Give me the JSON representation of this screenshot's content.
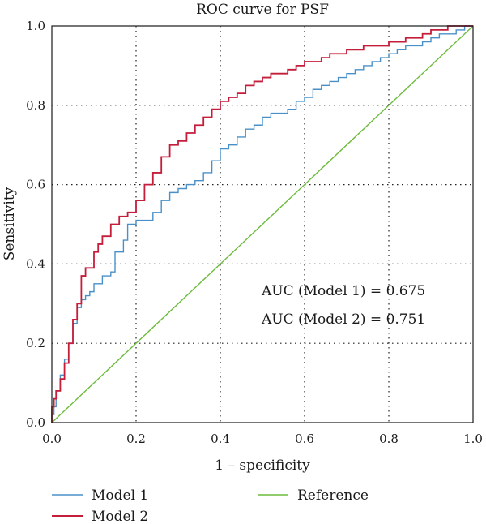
{
  "chart_data": {
    "type": "line",
    "title": "ROC curve for PSF",
    "xlabel": "1 – specificity",
    "ylabel": "Sensitivity",
    "xlim": [
      0,
      1
    ],
    "ylim": [
      0,
      1
    ],
    "xticks": [
      "0.0",
      "0.2",
      "0.4",
      "0.6",
      "0.8",
      "1.0"
    ],
    "yticks": [
      "0.0",
      "0.2",
      "0.4",
      "0.6",
      "0.8",
      "1.0"
    ],
    "grid": true,
    "legend_position": "bottom",
    "annotations": [
      "AUC (Model 1) = 0.675",
      "AUC (Model 2) = 0.751"
    ],
    "series": [
      {
        "name": "Model 1",
        "color": "#4a90c8",
        "x": [
          0,
          0.005,
          0.01,
          0.02,
          0.03,
          0.04,
          0.05,
          0.06,
          0.07,
          0.08,
          0.09,
          0.1,
          0.12,
          0.14,
          0.15,
          0.17,
          0.18,
          0.2,
          0.22,
          0.24,
          0.26,
          0.28,
          0.3,
          0.32,
          0.34,
          0.36,
          0.38,
          0.4,
          0.42,
          0.44,
          0.46,
          0.48,
          0.5,
          0.52,
          0.54,
          0.56,
          0.58,
          0.6,
          0.62,
          0.64,
          0.66,
          0.68,
          0.7,
          0.72,
          0.74,
          0.76,
          0.78,
          0.8,
          0.82,
          0.84,
          0.86,
          0.88,
          0.9,
          0.92,
          0.94,
          0.96,
          0.98,
          1.0
        ],
        "y": [
          0,
          0.02,
          0.04,
          0.08,
          0.12,
          0.16,
          0.2,
          0.25,
          0.29,
          0.31,
          0.32,
          0.33,
          0.35,
          0.37,
          0.38,
          0.43,
          0.46,
          0.5,
          0.51,
          0.51,
          0.53,
          0.56,
          0.58,
          0.59,
          0.6,
          0.61,
          0.63,
          0.66,
          0.69,
          0.7,
          0.72,
          0.74,
          0.75,
          0.77,
          0.78,
          0.78,
          0.79,
          0.81,
          0.82,
          0.84,
          0.85,
          0.86,
          0.87,
          0.88,
          0.89,
          0.9,
          0.91,
          0.92,
          0.93,
          0.94,
          0.95,
          0.95,
          0.96,
          0.97,
          0.98,
          0.98,
          0.99,
          1.0
        ]
      },
      {
        "name": "Model 2",
        "color": "#c41e3a",
        "x": [
          0,
          0.005,
          0.01,
          0.02,
          0.03,
          0.04,
          0.05,
          0.06,
          0.07,
          0.08,
          0.09,
          0.1,
          0.11,
          0.12,
          0.14,
          0.16,
          0.18,
          0.2,
          0.22,
          0.24,
          0.26,
          0.28,
          0.3,
          0.32,
          0.34,
          0.36,
          0.38,
          0.4,
          0.42,
          0.44,
          0.46,
          0.48,
          0.5,
          0.52,
          0.54,
          0.56,
          0.58,
          0.6,
          0.62,
          0.64,
          0.66,
          0.7,
          0.74,
          0.78,
          0.8,
          0.84,
          0.88,
          0.9,
          0.94,
          0.96,
          1.0
        ],
        "y": [
          0,
          0.04,
          0.06,
          0.08,
          0.11,
          0.15,
          0.2,
          0.26,
          0.3,
          0.37,
          0.39,
          0.39,
          0.43,
          0.45,
          0.47,
          0.5,
          0.52,
          0.53,
          0.56,
          0.6,
          0.63,
          0.67,
          0.7,
          0.71,
          0.73,
          0.75,
          0.77,
          0.79,
          0.81,
          0.82,
          0.83,
          0.85,
          0.86,
          0.87,
          0.88,
          0.88,
          0.89,
          0.9,
          0.91,
          0.91,
          0.92,
          0.93,
          0.94,
          0.95,
          0.95,
          0.96,
          0.97,
          0.98,
          0.99,
          1.0,
          1.0
        ]
      },
      {
        "name": "Reference",
        "color": "#6cbb3c",
        "x": [
          0,
          1
        ],
        "y": [
          0,
          1
        ]
      }
    ]
  }
}
